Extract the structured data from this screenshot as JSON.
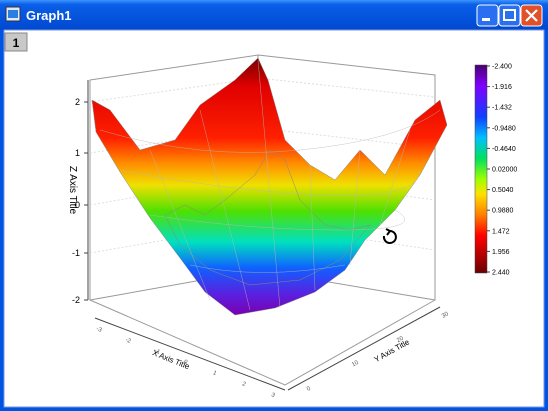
{
  "window": {
    "title": "Graph1"
  },
  "layer_label": "1",
  "plot": {
    "z_axis_title": "Z Axis Title",
    "x_axis_title": "X Axis Title",
    "y_axis_title": "Y Axis Title",
    "z_ticks": [
      "2",
      "1",
      "0",
      "-1",
      "-2"
    ],
    "x_ticks": [
      "-3",
      "-2",
      "-1",
      "0",
      "1",
      "2",
      "3"
    ],
    "y_ticks": [
      "0",
      "10",
      "20",
      "30"
    ]
  },
  "colorbar": {
    "labels": [
      "-2.400",
      "-1.916",
      "-1.432",
      "-0.9480",
      "-0.4640",
      "0.02000",
      "0.5040",
      "0.9880",
      "1.472",
      "1.956",
      "2.440"
    ]
  }
}
